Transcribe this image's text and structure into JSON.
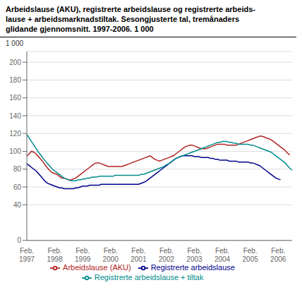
{
  "chart_data": {
    "type": "line",
    "title": "Arbeidslause (AKU), registrerte arbeidslause og registrerte arbeids-\nlause + arbeidsmarknadstiltak. Sesongjusterte tal, tremånaders\nglidande gjennomsnitt. 1997-2006. 1 000",
    "ylabel": "1 000",
    "categories": [
      "Feb.\n1997",
      null,
      null,
      null,
      null,
      null,
      null,
      null,
      null,
      null,
      null,
      null,
      "Feb.\n1998",
      null,
      null,
      null,
      null,
      null,
      null,
      null,
      null,
      null,
      null,
      null,
      "Feb.\n1999",
      null,
      null,
      null,
      null,
      null,
      null,
      null,
      null,
      null,
      null,
      null,
      "Feb.\n2000",
      null,
      null,
      null,
      null,
      null,
      null,
      null,
      null,
      null,
      null,
      null,
      "Feb.\n2001",
      null,
      null,
      null,
      null,
      null,
      null,
      null,
      null,
      null,
      null,
      null,
      "Feb.\n2002",
      null,
      null,
      null,
      null,
      null,
      null,
      null,
      null,
      null,
      null,
      null,
      "Feb.\n2003",
      null,
      null,
      null,
      null,
      null,
      null,
      null,
      null,
      null,
      null,
      null,
      "Feb.\n2004",
      null,
      null,
      null,
      null,
      null,
      null,
      null,
      null,
      null,
      null,
      null,
      "Feb.\n2005",
      null,
      null,
      null,
      null,
      null,
      null,
      null,
      null,
      null,
      null,
      null,
      "Feb.\n2006",
      null,
      null,
      null,
      null,
      null,
      null
    ],
    "series": [
      {
        "name": "Arbeidslause (AKU)",
        "color": "#b22222",
        "values": [
          95,
          97,
          100,
          99,
          97,
          94,
          91,
          88,
          84,
          81,
          78,
          76,
          75,
          74,
          72,
          70,
          70,
          69,
          68,
          68,
          69,
          70,
          72,
          74,
          76,
          78,
          80,
          82,
          84,
          86,
          87,
          87,
          86,
          85,
          84,
          83,
          83,
          83,
          83,
          83,
          83,
          83,
          84,
          85,
          86,
          87,
          88,
          89,
          90,
          91,
          92,
          93,
          94,
          95,
          93,
          91,
          90,
          89,
          90,
          91,
          92,
          93,
          94,
          95,
          97,
          99,
          101,
          103,
          105,
          106,
          107,
          107,
          106,
          105,
          104,
          103,
          103,
          103,
          104,
          105,
          106,
          107,
          108,
          108,
          108,
          108,
          107,
          107,
          107,
          107,
          107,
          108,
          109,
          110,
          111,
          112,
          113,
          114,
          115,
          116,
          117,
          117,
          116,
          115,
          114,
          113,
          111,
          109,
          107,
          105,
          103,
          101,
          98,
          96,
          null
        ]
      },
      {
        "name": "Registrerte arbeidslause",
        "color": "#00008b",
        "values": [
          86,
          84,
          82,
          80,
          78,
          75,
          72,
          69,
          66,
          64,
          63,
          62,
          61,
          60,
          59,
          59,
          58,
          58,
          58,
          58,
          58,
          59,
          59,
          60,
          61,
          61,
          61,
          62,
          62,
          62,
          62,
          62,
          63,
          63,
          63,
          63,
          63,
          63,
          63,
          63,
          63,
          63,
          63,
          63,
          63,
          63,
          63,
          63,
          63,
          64,
          65,
          66,
          68,
          70,
          72,
          74,
          76,
          78,
          80,
          82,
          84,
          86,
          88,
          90,
          92,
          93,
          94,
          95,
          95,
          95,
          95,
          95,
          94,
          94,
          94,
          93,
          93,
          93,
          93,
          92,
          92,
          91,
          91,
          90,
          90,
          90,
          90,
          89,
          89,
          89,
          89,
          88,
          88,
          88,
          88,
          88,
          87,
          87,
          86,
          85,
          84,
          82,
          80,
          78,
          76,
          74,
          72,
          70,
          69,
          68,
          null,
          null,
          null,
          null,
          null
        ]
      },
      {
        "name": "Registrerte arbeidslause + tiltak",
        "color": "#008b8b",
        "values": [
          119,
          115,
          111,
          107,
          103,
          99,
          96,
          92,
          89,
          86,
          83,
          80,
          78,
          76,
          74,
          72,
          70,
          69,
          68,
          67,
          67,
          67,
          68,
          68,
          69,
          69,
          70,
          70,
          71,
          71,
          71,
          72,
          72,
          72,
          72,
          72,
          72,
          72,
          73,
          73,
          73,
          73,
          73,
          73,
          73,
          73,
          73,
          73,
          73,
          74,
          74,
          75,
          76,
          77,
          78,
          79,
          80,
          81,
          82,
          83,
          85,
          86,
          88,
          90,
          92,
          93,
          94,
          95,
          96,
          97,
          98,
          99,
          100,
          101,
          102,
          103,
          104,
          105,
          106,
          107,
          108,
          109,
          110,
          110,
          111,
          111,
          111,
          110,
          110,
          109,
          109,
          108,
          108,
          108,
          108,
          108,
          107,
          107,
          106,
          105,
          104,
          103,
          102,
          101,
          100,
          99,
          97,
          95,
          93,
          91,
          89,
          87,
          84,
          81,
          79
        ]
      }
    ],
    "ylim": [
      0,
      212
    ],
    "yticks": [
      0,
      40,
      60,
      80,
      100,
      120,
      140,
      160,
      180,
      200
    ],
    "grid": true,
    "legend": "bottom"
  }
}
